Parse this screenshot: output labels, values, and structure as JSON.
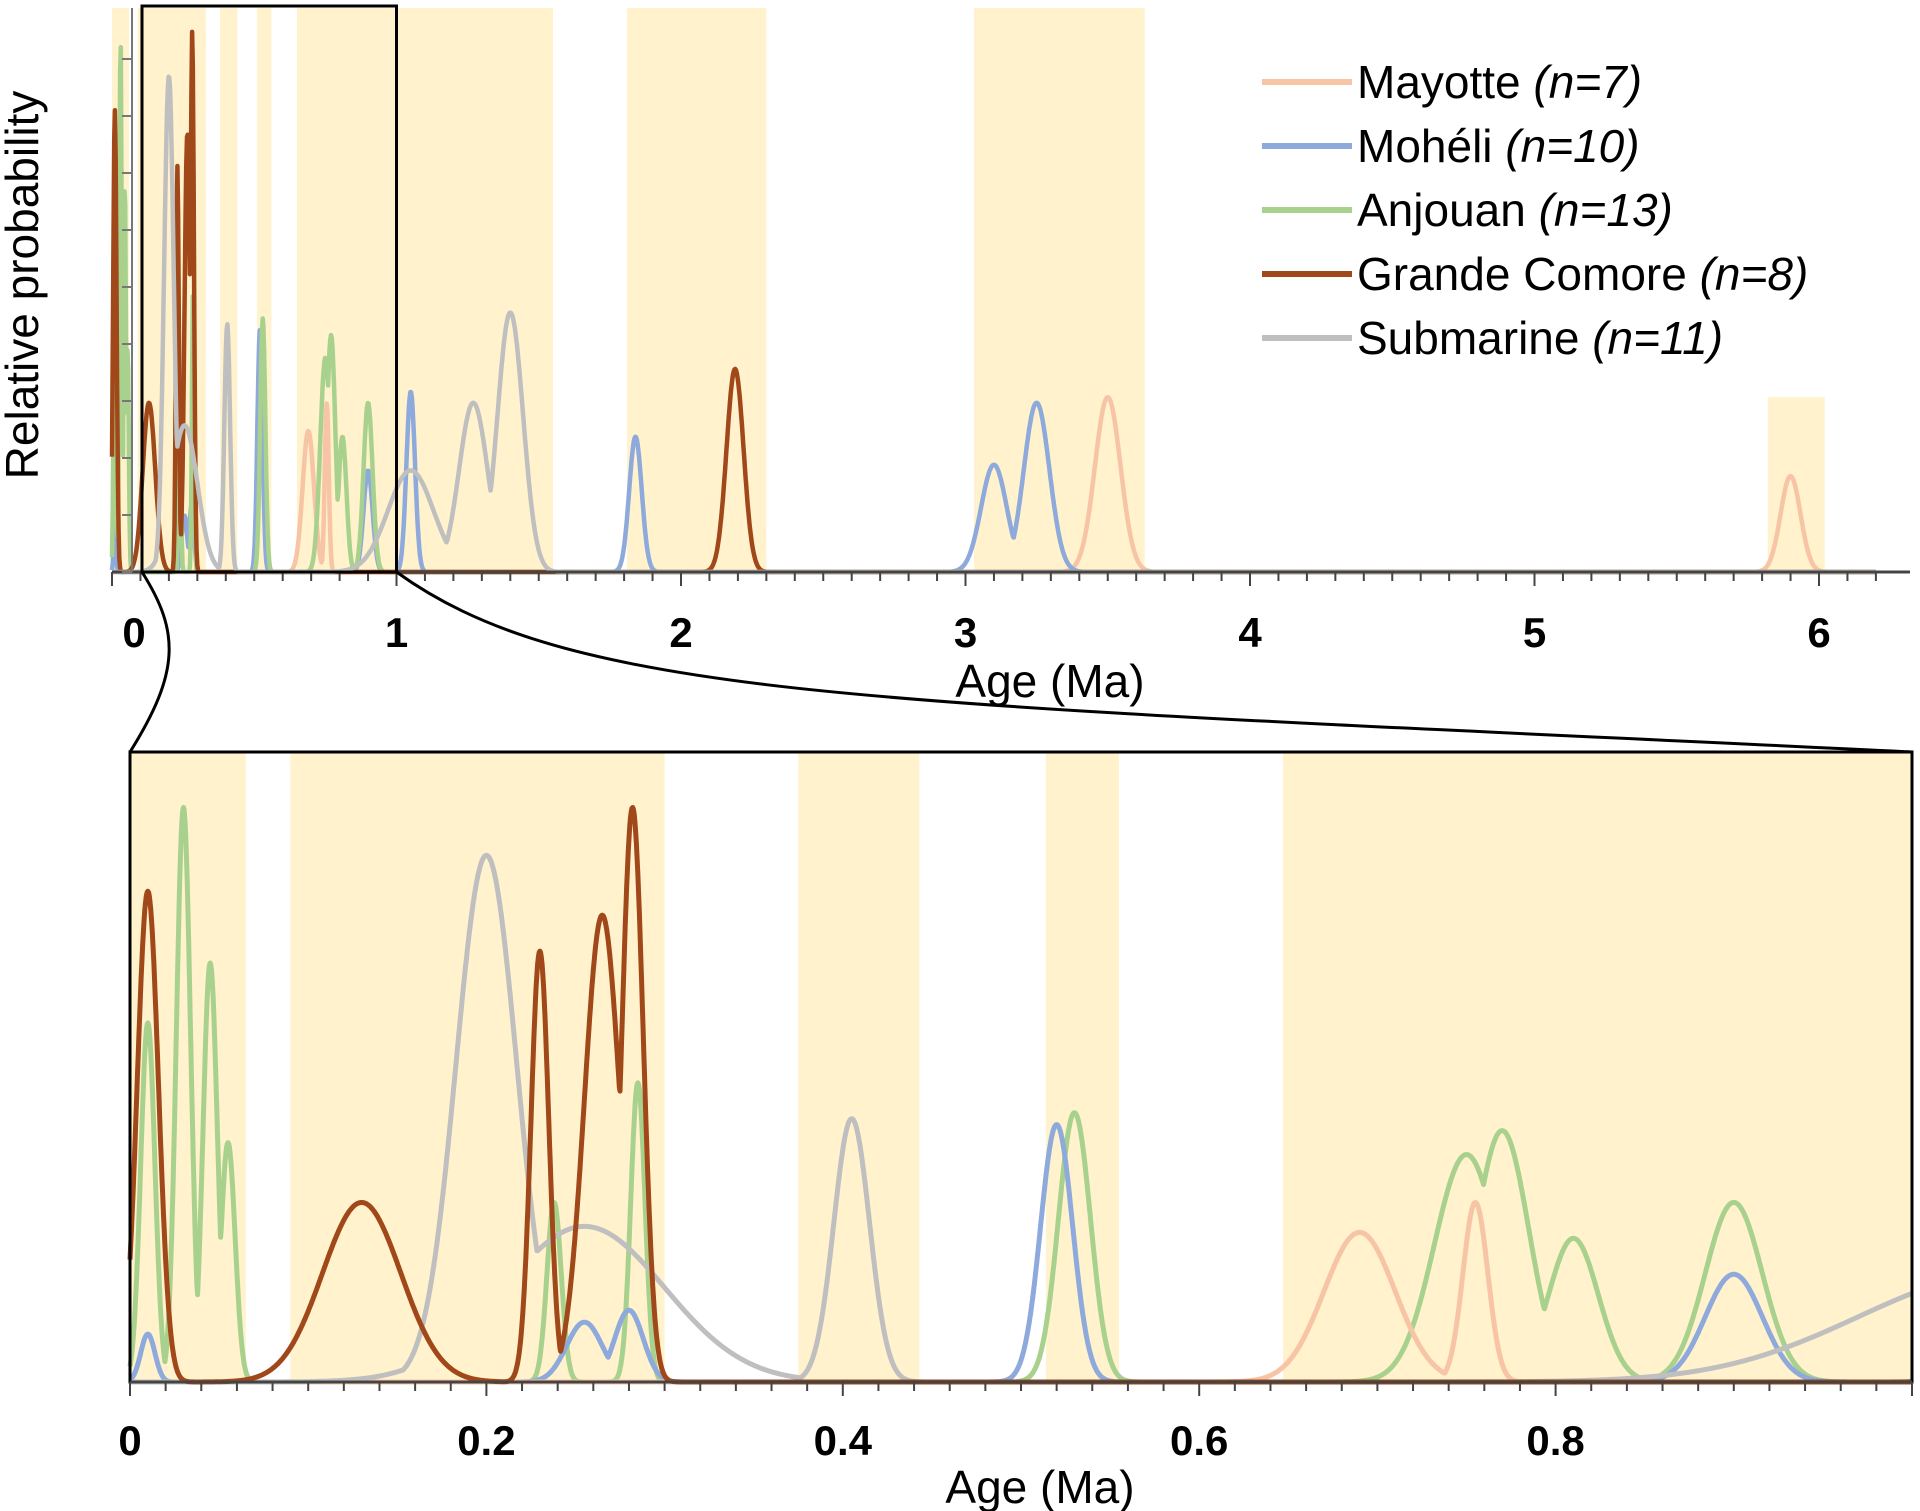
{
  "chart_data": [
    {
      "name": "full-range",
      "type": "line",
      "title": "",
      "xlabel": "Age (Ma)",
      "ylabel": "Relative probability",
      "xlim": [
        0,
        6.2
      ],
      "ylim": [
        0,
        1
      ],
      "xticks": [
        "0",
        "1",
        "2",
        "3",
        "4",
        "5",
        "6"
      ],
      "xtick_values": [
        0,
        1,
        2,
        3,
        4,
        5,
        6
      ],
      "bands": [
        [
          0,
          0.06
        ],
        [
          0.09,
          0.33
        ],
        [
          0.38,
          0.44
        ],
        [
          0.51,
          0.56
        ],
        [
          0.65,
          1.55
        ],
        [
          1.81,
          2.3
        ],
        [
          3.03,
          3.63
        ],
        [
          5.82,
          6.02
        ]
      ],
      "bands_top": [
        1,
        1,
        1,
        1,
        1,
        1,
        1,
        0.31
      ],
      "zoom_box": [
        0,
        1
      ],
      "series": [
        {
          "name": "Mayotte",
          "n": "(n=7)",
          "color": "#f7c4a6",
          "width": 6,
          "peaks": [
            [
              0.69,
              0.25,
              0.02
            ],
            [
              0.755,
              0.3,
              0.007
            ],
            [
              3.5,
              0.31,
              0.045
            ],
            [
              5.9,
              0.17,
              0.035
            ]
          ]
        },
        {
          "name": "Mohéli",
          "n": "(n=10)",
          "color": "#8ea9db",
          "width": 6,
          "peaks": [
            [
              0.01,
              0.08,
              0.004
            ],
            [
              0.255,
              0.1,
              0.01
            ],
            [
              0.28,
              0.12,
              0.008
            ],
            [
              0.52,
              0.43,
              0.009
            ],
            [
              0.9,
              0.18,
              0.016
            ],
            [
              1.05,
              0.32,
              0.015
            ],
            [
              1.84,
              0.24,
              0.022
            ],
            [
              3.1,
              0.19,
              0.045
            ],
            [
              3.25,
              0.3,
              0.045
            ]
          ]
        },
        {
          "name": "Anjouan",
          "n": "(n=13)",
          "color": "#a9d18e",
          "width": 6,
          "peaks": [
            [
              0.01,
              0.6,
              0.004
            ],
            [
              0.03,
              0.96,
              0.004
            ],
            [
              0.045,
              0.7,
              0.004
            ],
            [
              0.055,
              0.4,
              0.004
            ],
            [
              0.238,
              0.3,
              0.004
            ],
            [
              0.285,
              0.5,
              0.004
            ],
            [
              0.53,
              0.45,
              0.009
            ],
            [
              0.75,
              0.38,
              0.018
            ],
            [
              0.77,
              0.42,
              0.015
            ],
            [
              0.81,
              0.24,
              0.014
            ],
            [
              0.9,
              0.3,
              0.016
            ]
          ]
        },
        {
          "name": "Grande Comore",
          "n": "(n=8)",
          "color": "#a0481a",
          "width": 6,
          "peaks": [
            [
              0.01,
              0.82,
              0.006
            ],
            [
              0.13,
              0.3,
              0.022
            ],
            [
              0.23,
              0.72,
              0.005
            ],
            [
              0.265,
              0.78,
              0.01
            ],
            [
              0.282,
              0.96,
              0.006
            ],
            [
              2.19,
              0.36,
              0.03
            ]
          ]
        },
        {
          "name": "Submarine",
          "n": "(n=11)",
          "color": "#bfbfbf",
          "width": 6,
          "peaks": [
            [
              0.2,
              0.88,
              0.017
            ],
            [
              0.255,
              0.26,
              0.045
            ],
            [
              0.405,
              0.44,
              0.01
            ],
            [
              1.05,
              0.18,
              0.08
            ],
            [
              1.27,
              0.3,
              0.05
            ],
            [
              1.4,
              0.46,
              0.045
            ]
          ]
        }
      ]
    },
    {
      "name": "zoom-0-to-1",
      "type": "line",
      "title": "",
      "xlabel": "Age (Ma)",
      "ylabel": "",
      "xlim": [
        0,
        1
      ],
      "ylim": [
        0,
        1
      ],
      "xticks": [
        "0",
        "0.2",
        "0.4",
        "0.6",
        "0.8"
      ],
      "xtick_values": [
        0,
        0.2,
        0.4,
        0.6,
        0.8
      ],
      "bands": [
        [
          0,
          0.065
        ],
        [
          0.09,
          0.3
        ],
        [
          0.375,
          0.443
        ],
        [
          0.514,
          0.555
        ],
        [
          0.647,
          1.0
        ]
      ]
    }
  ],
  "legend": [
    {
      "name": "Mayotte",
      "n": "(n=7)"
    },
    {
      "name": "Mohéli",
      "n": "(n=10)"
    },
    {
      "name": "Anjouan",
      "n": "(n=13)"
    },
    {
      "name": "Grande Comore",
      "n": "(n=8)"
    },
    {
      "name": "Submarine",
      "n": "(n=11)"
    }
  ],
  "band_color": "#fff2cc"
}
